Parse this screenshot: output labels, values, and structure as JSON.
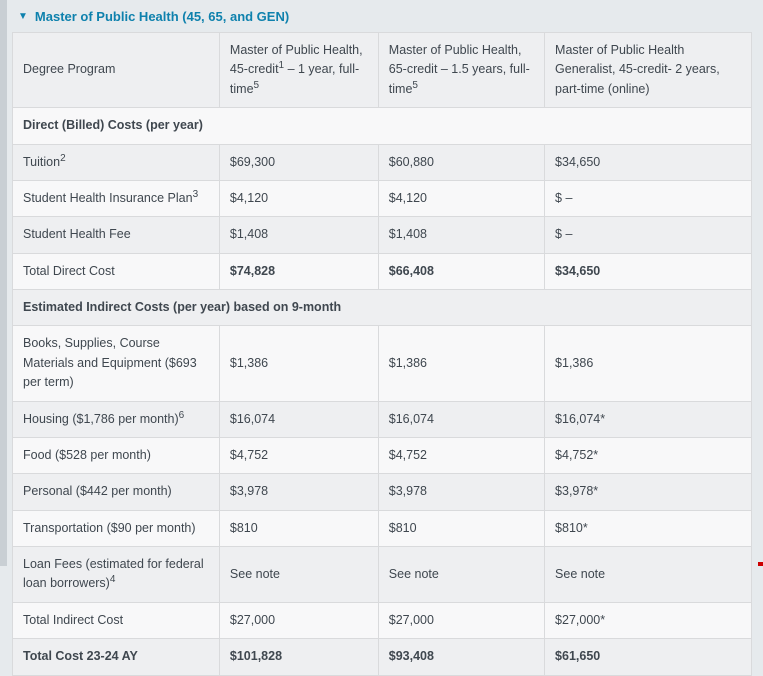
{
  "colors": {
    "accent_teal": "#0e81ad",
    "row_gray": "#eeeff1",
    "row_white": "#f8f8f9",
    "border": "#d9dadc",
    "page_background": "#e6eaed",
    "left_strip": "#c9cfd4",
    "text": "#3f474f",
    "corner_marker_red": "#cc0000"
  },
  "title": {
    "arrow": "▼",
    "text": "Master of Public Health (45, 65, and GEN)"
  },
  "table": {
    "columns": [
      {
        "name": "degree-program",
        "segments": [
          {
            "text": "Degree Program"
          }
        ]
      },
      {
        "name": "mph-45-credit",
        "segments": [
          {
            "text": "Master of Public Health, 45-credit"
          },
          {
            "sup": "1"
          },
          {
            "text": " – 1 year, full-time"
          },
          {
            "sup": "5"
          }
        ]
      },
      {
        "name": "mph-65-credit",
        "segments": [
          {
            "text": "Master of Public Health, 65-credit – 1.5 years, full-time"
          },
          {
            "sup": "5"
          }
        ]
      },
      {
        "name": "mph-generalist-45-credit",
        "segments": [
          {
            "text": "Master of Public Health Generalist, 45-credit- 2 years, part-time (online)"
          }
        ]
      }
    ],
    "rows": [
      {
        "type": "section",
        "label": "Direct (Billed) Costs (per year)"
      },
      {
        "type": "data",
        "label": "Tuition",
        "sup": "2",
        "values": [
          "$69,300",
          "$60,880",
          "$34,650"
        ]
      },
      {
        "type": "data",
        "label": "Student Health Insurance Plan",
        "sup": "3",
        "values": [
          "$4,120",
          "$4,120",
          "$ –"
        ]
      },
      {
        "type": "data",
        "label": "Student Health Fee",
        "values": [
          "$1,408",
          "$1,408",
          "$ –"
        ]
      },
      {
        "type": "data",
        "label": "Total Direct Cost",
        "values_bold": true,
        "values": [
          "$74,828",
          "$66,408",
          "$34,650"
        ]
      },
      {
        "type": "section",
        "label": "Estimated Indirect Costs (per year) based on 9-month"
      },
      {
        "type": "data",
        "label": "Books, Supplies, Course Materials and Equipment ($693 per term)",
        "values": [
          "$1,386",
          "$1,386",
          "$1,386"
        ]
      },
      {
        "type": "data",
        "label": "Housing ($1,786 per month)",
        "sup": "6",
        "values": [
          "$16,074",
          "$16,074",
          "$16,074*"
        ]
      },
      {
        "type": "data",
        "label": "Food ($528 per month)",
        "values": [
          "$4,752",
          "$4,752",
          "$4,752*"
        ]
      },
      {
        "type": "data",
        "label": "Personal ($442 per month)",
        "values": [
          "$3,978",
          "$3,978",
          "$3,978*"
        ]
      },
      {
        "type": "data",
        "label": "Transportation ($90 per month)",
        "values": [
          "$810",
          "$810",
          "$810*"
        ]
      },
      {
        "type": "data",
        "label": "Loan Fees (estimated for federal loan borrowers)",
        "sup": "4",
        "values": [
          "See note",
          "See note",
          "See note"
        ]
      },
      {
        "type": "data",
        "label": "Total Indirect Cost",
        "values": [
          "$27,000",
          "$27,000",
          "$27,000*"
        ]
      },
      {
        "type": "data",
        "label": "Total Cost 23-24 AY",
        "label_bold": true,
        "values_bold": true,
        "values": [
          "$101,828",
          "$93,408",
          "$61,650"
        ]
      }
    ]
  }
}
